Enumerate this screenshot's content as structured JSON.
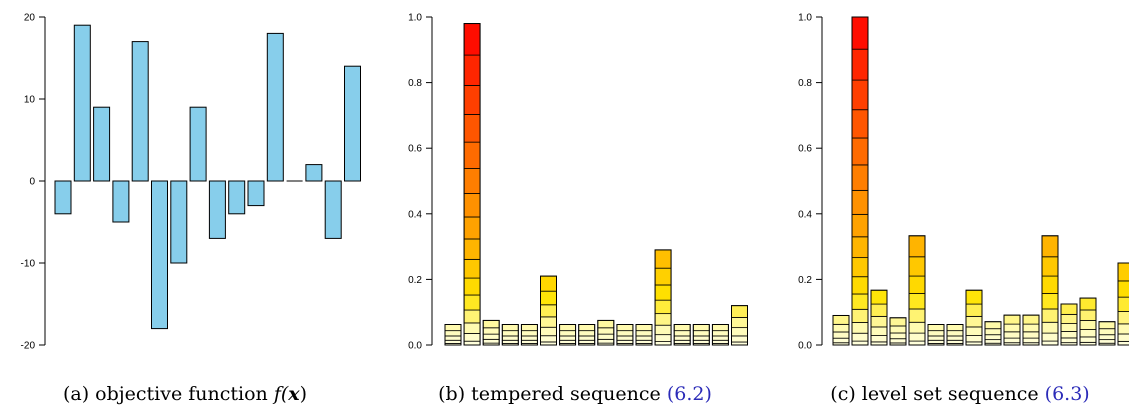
{
  "panels": [
    {
      "id": "a",
      "caption_prefix": "(a) objective function ",
      "caption_math": "f(",
      "caption_var": "x",
      "caption_end": ")",
      "caption_ref": "",
      "chart_data": {
        "type": "bar",
        "title": "",
        "xlabel": "",
        "ylabel": "",
        "ylim": [
          -20,
          20
        ],
        "yticks": [
          -20,
          -10,
          0,
          10,
          20
        ],
        "grid": false,
        "bar_color": "#87ceeb",
        "values": [
          -4,
          19,
          9,
          -5,
          17,
          -18,
          -10,
          9,
          -7,
          -4,
          -3,
          18,
          0,
          2,
          -7,
          14
        ]
      }
    },
    {
      "id": "b",
      "caption_prefix": "(b) tempered sequence ",
      "caption_math": "",
      "caption_var": "",
      "caption_end": "",
      "caption_ref": "(6.2)",
      "chart_data": {
        "type": "bar",
        "title": "",
        "xlabel": "",
        "ylabel": "",
        "ylim": [
          0,
          1
        ],
        "yticks": [
          "0.0",
          "0.2",
          "0.4",
          "0.6",
          "0.8",
          "1.0"
        ],
        "grid": false,
        "stacked_levels": true,
        "values": [
          0.0625,
          0.98,
          0.075,
          0.0625,
          0.0625,
          0.21,
          0.0625,
          0.0625,
          0.075,
          0.0625,
          0.0625,
          0.29,
          0.0625,
          0.0625,
          0.0625,
          0.12
        ]
      }
    },
    {
      "id": "c",
      "caption_prefix": "(c) level set sequence ",
      "caption_math": "",
      "caption_var": "",
      "caption_end": "",
      "caption_ref": "(6.3)",
      "chart_data": {
        "type": "bar",
        "title": "",
        "xlabel": "",
        "ylabel": "",
        "ylim": [
          0,
          1
        ],
        "yticks": [
          "0.0",
          "0.2",
          "0.4",
          "0.6",
          "0.8",
          "1.0"
        ],
        "grid": false,
        "stacked_levels": true,
        "values": [
          0.09,
          1.0,
          0.167,
          0.083,
          0.333,
          0.0625,
          0.0625,
          0.167,
          0.071,
          0.091,
          0.091,
          0.333,
          0.125,
          0.143,
          0.071,
          0.25
        ]
      }
    }
  ]
}
